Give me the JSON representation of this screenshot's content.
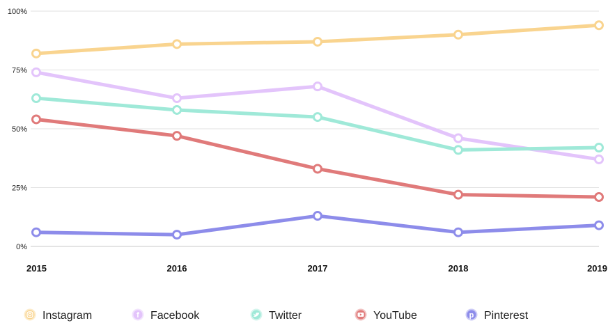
{
  "chart_data": {
    "type": "line",
    "x": [
      "2015",
      "2016",
      "2017",
      "2018",
      "2019"
    ],
    "ylim": [
      0,
      100
    ],
    "yticks": [
      "0%",
      "25%",
      "50%",
      "75%",
      "100%"
    ],
    "grid": "horizontal",
    "legend_position": "bottom",
    "series": [
      {
        "name": "Instagram",
        "color": "#f9d48f",
        "icon": "instagram-icon",
        "values": [
          82,
          86,
          87,
          90,
          94
        ]
      },
      {
        "name": "Facebook",
        "color": "#e3c4fb",
        "icon": "facebook-icon",
        "values": [
          74,
          63,
          68,
          46,
          37
        ]
      },
      {
        "name": "Twitter",
        "color": "#9fe9d8",
        "icon": "twitter-icon",
        "values": [
          63,
          58,
          55,
          41,
          42
        ]
      },
      {
        "name": "YouTube",
        "color": "#e07a7a",
        "icon": "youtube-icon",
        "values": [
          54,
          47,
          33,
          22,
          21
        ]
      },
      {
        "name": "Pinterest",
        "color": "#8d8cea",
        "icon": "pinterest-icon",
        "values": [
          6,
          5,
          13,
          6,
          9
        ]
      }
    ]
  }
}
